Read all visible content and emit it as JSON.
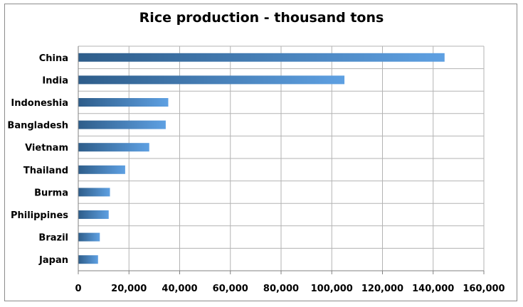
{
  "chart_data": {
    "type": "bar",
    "orientation": "horizontal",
    "title": "Rice production - thousand tons",
    "xlabel": "",
    "ylabel": "",
    "categories": [
      "China",
      "India",
      "Indoneshia",
      "Bangladesh",
      "Vietnam",
      "Thailand",
      "Burma",
      "Philippines",
      "Brazil",
      "Japan"
    ],
    "values": [
      144500,
      105000,
      35500,
      34500,
      28000,
      18500,
      12500,
      12000,
      8500,
      7800
    ],
    "xlim": [
      0,
      160000
    ],
    "xticks": [
      0,
      20000,
      40000,
      60000,
      80000,
      100000,
      120000,
      140000,
      160000
    ],
    "xtick_labels": [
      "0",
      "20,000",
      "40,000",
      "60,000",
      "80,000",
      "100,000",
      "120,000",
      "140,000",
      "160,000"
    ],
    "grid": true,
    "legend": "none",
    "colors": {
      "bar_dark": "#2e5d8a",
      "bar_light": "#5ea0e2",
      "grid": "#b3b3b3",
      "axis": "#808080",
      "frame": "#8c8c8c"
    }
  }
}
